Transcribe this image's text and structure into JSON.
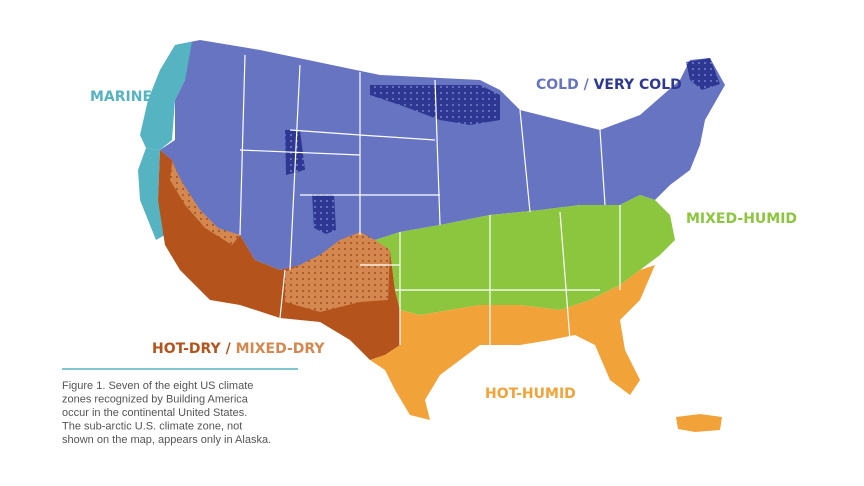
{
  "zones": [
    {
      "name": "MARINE",
      "color": "#56b4c2"
    },
    {
      "name": "COLD",
      "color": "#6774c2"
    },
    {
      "name": "VERY COLD",
      "color": "#2e3892"
    },
    {
      "name": "MIXED-HUMID",
      "color": "#8cc63f"
    },
    {
      "name": "HOT-DRY",
      "color": "#b4531b"
    },
    {
      "name": "MIXED-DRY",
      "color": "#d4874f"
    },
    {
      "name": "HOT-HUMID",
      "color": "#f1a33a"
    }
  ],
  "separator": "/",
  "caption": [
    "Figure 1. Seven of the eight US climate",
    "zones recognized by Building America",
    "occur in the continental United States.",
    "The sub-arctic U.S. climate zone, not",
    "shown on the map, appears only in Alaska."
  ]
}
